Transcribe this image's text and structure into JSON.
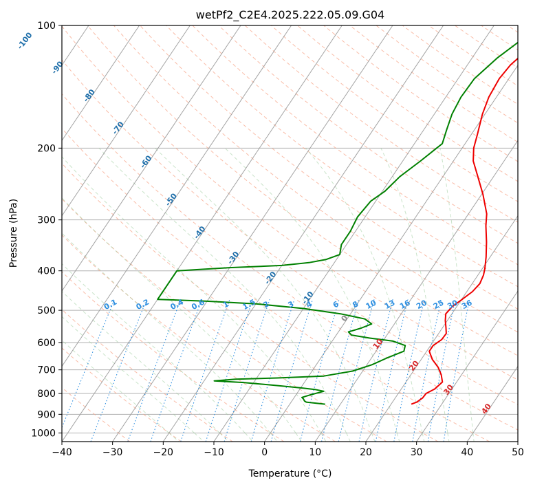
{
  "chart_data": {
    "type": "line",
    "title": "wetPf2_C2E4.2025.222.05.09.G04",
    "xlabel": "Temperature (°C)",
    "ylabel": "Pressure (hPa)",
    "xlim": [
      -40,
      50
    ],
    "ylim": [
      1050,
      100
    ],
    "yscale": "log",
    "xticks": [
      -40,
      -30,
      -20,
      -10,
      0,
      10,
      20,
      30,
      40,
      50
    ],
    "xtick_labels": [
      "−40",
      "−30",
      "−20",
      "−10",
      "0",
      "10",
      "20",
      "30",
      "40",
      "50"
    ],
    "yticks": [
      100,
      200,
      300,
      400,
      500,
      600,
      700,
      800,
      900,
      1000
    ],
    "ytick_labels": [
      "100",
      "200",
      "300",
      "400",
      "500",
      "600",
      "700",
      "800",
      "900",
      "1000"
    ],
    "grid": true,
    "series": [
      {
        "color": "#ee0000",
        "points": [
          [
            850,
            24.0
          ],
          [
            840,
            24.8
          ],
          [
            820,
            25.4
          ],
          [
            800,
            25.5
          ],
          [
            780,
            26.6
          ],
          [
            750,
            27.2
          ],
          [
            720,
            26.0
          ],
          [
            690,
            24.4
          ],
          [
            660,
            22.2
          ],
          [
            630,
            20.5
          ],
          [
            610,
            20.5
          ],
          [
            590,
            21.4
          ],
          [
            570,
            21.5
          ],
          [
            550,
            20.6
          ],
          [
            530,
            19.6
          ],
          [
            510,
            18.8
          ],
          [
            490,
            19.1
          ],
          [
            470,
            20.1
          ],
          [
            450,
            21.1
          ],
          [
            430,
            21.5
          ],
          [
            410,
            21.1
          ],
          [
            395,
            20.5
          ],
          [
            370,
            19.2
          ],
          [
            340,
            17.3
          ],
          [
            310,
            15.0
          ],
          [
            290,
            13.6
          ],
          [
            260,
            10.3
          ],
          [
            235,
            6.9
          ],
          [
            215,
            3.9
          ],
          [
            200,
            2.3
          ],
          [
            185,
            1.2
          ],
          [
            165,
            -0.5
          ],
          [
            150,
            -1.5
          ],
          [
            135,
            -1.9
          ],
          [
            125,
            -1.5
          ],
          [
            115,
            -0.2
          ],
          [
            105,
            1.8
          ],
          [
            100,
            3.4
          ]
        ]
      },
      {
        "color": "#008000",
        "points": [
          [
            850,
            7.0
          ],
          [
            845,
            5.0
          ],
          [
            840,
            3.0
          ],
          [
            835,
            2.5
          ],
          [
            825,
            2.0
          ],
          [
            818,
            1.5
          ],
          [
            805,
            3.0
          ],
          [
            790,
            5.0
          ],
          [
            782,
            3.0
          ],
          [
            775,
            0.0
          ],
          [
            765,
            -5.0
          ],
          [
            752,
            -12.0
          ],
          [
            745,
            -18.0
          ],
          [
            738,
            -14.0
          ],
          [
            733,
            -6.0
          ],
          [
            725,
            3.0
          ],
          [
            705,
            8.0
          ],
          [
            680,
            11.0
          ],
          [
            655,
            13.0
          ],
          [
            630,
            15.5
          ],
          [
            610,
            15.0
          ],
          [
            595,
            12.0
          ],
          [
            585,
            7.0
          ],
          [
            575,
            3.0
          ],
          [
            565,
            2.0
          ],
          [
            553,
            4.0
          ],
          [
            540,
            5.5
          ],
          [
            525,
            3.5
          ],
          [
            510,
            -2.0
          ],
          [
            495,
            -10.0
          ],
          [
            482,
            -20.0
          ],
          [
            475,
            -30.0
          ],
          [
            470,
            -40.0
          ],
          [
            400,
            -40.0
          ],
          [
            393,
            -30.0
          ],
          [
            388,
            -20.0
          ],
          [
            382,
            -15.0
          ],
          [
            375,
            -12.0
          ],
          [
            365,
            -10.0
          ],
          [
            345,
            -11.0
          ],
          [
            320,
            -11.0
          ],
          [
            295,
            -11.5
          ],
          [
            270,
            -11.0
          ],
          [
            255,
            -9.5
          ],
          [
            235,
            -8.5
          ],
          [
            215,
            -6.5
          ],
          [
            195,
            -4.5
          ],
          [
            180,
            -5.5
          ],
          [
            165,
            -6.5
          ],
          [
            150,
            -7.0
          ],
          [
            135,
            -6.8
          ],
          [
            120,
            -5.0
          ],
          [
            110,
            -3.0
          ],
          [
            100,
            -1.5
          ]
        ]
      }
    ],
    "mixing_ratio_labels": [
      "0.1",
      "0.2",
      "0.4",
      "0.6",
      "1",
      "1.5",
      "2",
      "3",
      "4",
      "6",
      "8",
      "10",
      "13",
      "16",
      "20",
      "25",
      "30",
      "36"
    ],
    "isotherm_labels": [
      "-100",
      "-90",
      "-80",
      "-70",
      "-60",
      "-50",
      "-40",
      "-30",
      "-20",
      "-10",
      "0",
      "10",
      "20",
      "30",
      "40"
    ]
  }
}
